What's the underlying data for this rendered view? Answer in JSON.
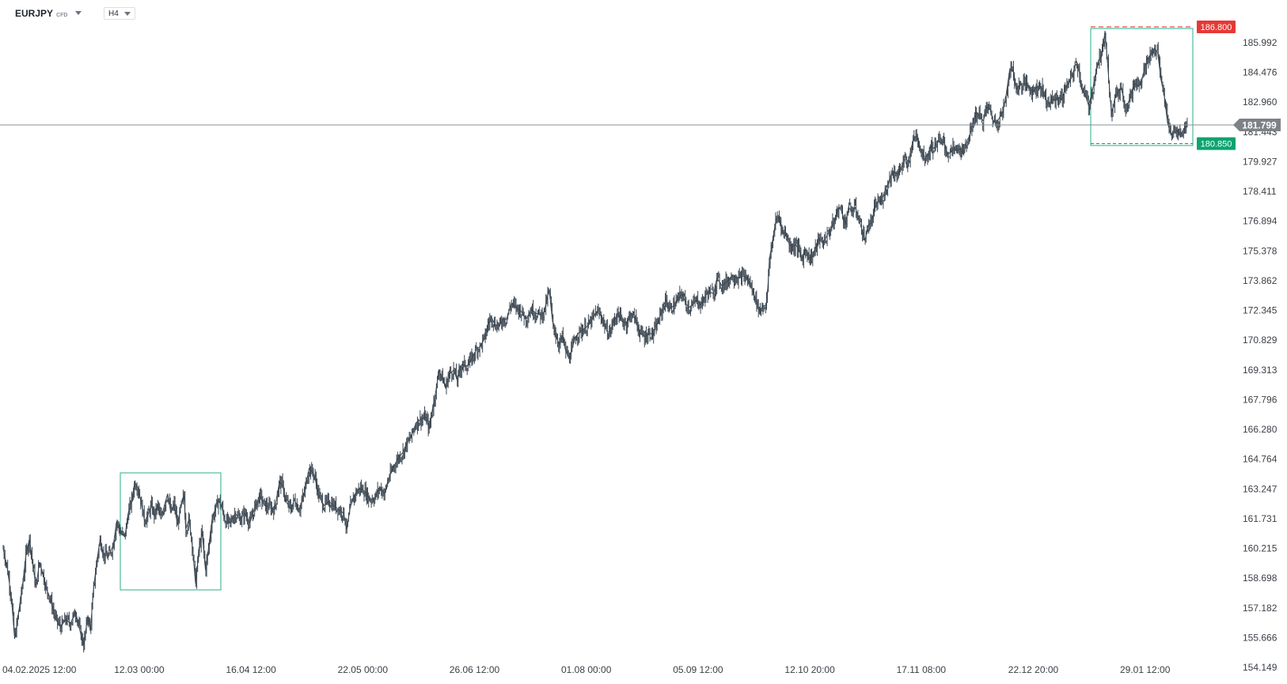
{
  "toolbar": {
    "symbol": "EURJPY",
    "instrument_type": "CFD",
    "timeframe": "H4"
  },
  "chart_data": {
    "type": "candlestick",
    "y_ticks": [
      "185.992",
      "184.476",
      "182.960",
      "181.443",
      "179.927",
      "178.411",
      "176.894",
      "175.378",
      "173.862",
      "172.345",
      "170.829",
      "169.313",
      "167.796",
      "166.280",
      "164.764",
      "163.247",
      "161.731",
      "160.215",
      "158.698",
      "157.182",
      "155.666",
      "154.149"
    ],
    "x_ticks": [
      "04.02.2025  12:00",
      "12.03  00:00",
      "16.04  12:00",
      "22.05  00:00",
      "26.06  12:00",
      "01.08  00:00",
      "05.09  12:00",
      "12.10  20:00",
      "17.11  08:00",
      "22.12  20:00",
      "29.01  12:00"
    ],
    "ylim": [
      154.149,
      186.8
    ],
    "current_price": "181.799",
    "levels": [
      {
        "label": "186.800",
        "value": 186.8,
        "color": "#e53935"
      },
      {
        "label": "180.850",
        "value": 180.85,
        "color": "#0aa46f"
      }
    ],
    "price_path": [
      [
        0,
        160.2
      ],
      [
        5,
        159.2
      ],
      [
        10,
        157.7
      ],
      [
        14,
        155.6
      ],
      [
        19,
        157.0
      ],
      [
        24,
        158.5
      ],
      [
        28,
        160.0
      ],
      [
        32,
        160.7
      ],
      [
        36,
        159.4
      ],
      [
        40,
        158.2
      ],
      [
        44,
        159.5
      ],
      [
        48,
        159.0
      ],
      [
        52,
        158.2
      ],
      [
        56,
        157.8
      ],
      [
        60,
        157.2
      ],
      [
        64,
        156.6
      ],
      [
        70,
        156.2
      ],
      [
        76,
        156.6
      ],
      [
        82,
        156.4
      ],
      [
        88,
        157.0
      ],
      [
        94,
        155.9
      ],
      [
        98,
        155.3
      ],
      [
        103,
        156.8
      ],
      [
        106,
        156.0
      ],
      [
        110,
        158.2
      ],
      [
        114,
        159.6
      ],
      [
        118,
        160.7
      ],
      [
        122,
        159.9
      ],
      [
        128,
        159.8
      ],
      [
        134,
        160.4
      ],
      [
        138,
        161.6
      ],
      [
        143,
        161.0
      ],
      [
        148,
        160.8
      ],
      [
        152,
        162.0
      ],
      [
        156,
        162.6
      ],
      [
        160,
        163.6
      ],
      [
        164,
        163.3
      ],
      [
        168,
        162.5
      ],
      [
        172,
        161.6
      ],
      [
        176,
        161.9
      ],
      [
        180,
        162.4
      ],
      [
        184,
        161.9
      ],
      [
        188,
        162.4
      ],
      [
        192,
        161.7
      ],
      [
        196,
        162.4
      ],
      [
        200,
        163.0
      ],
      [
        204,
        162.0
      ],
      [
        208,
        162.5
      ],
      [
        212,
        161.4
      ],
      [
        216,
        162.3
      ],
      [
        220,
        162.9
      ],
      [
        222,
        161.2
      ],
      [
        226,
        161.7
      ],
      [
        230,
        160.4
      ],
      [
        234,
        158.4
      ],
      [
        238,
        160.2
      ],
      [
        242,
        161.0
      ],
      [
        246,
        159.1
      ],
      [
        250,
        160.3
      ],
      [
        254,
        161.7
      ],
      [
        258,
        162.2
      ],
      [
        262,
        162.7
      ],
      [
        266,
        162.3
      ],
      [
        270,
        161.6
      ],
      [
        276,
        161.5
      ],
      [
        282,
        162.0
      ],
      [
        288,
        161.7
      ],
      [
        294,
        162.0
      ],
      [
        300,
        161.5
      ],
      [
        306,
        162.3
      ],
      [
        312,
        162.9
      ],
      [
        318,
        162.4
      ],
      [
        324,
        162.3
      ],
      [
        330,
        162.2
      ],
      [
        336,
        163.6
      ],
      [
        340,
        163.4
      ],
      [
        344,
        162.6
      ],
      [
        350,
        162.2
      ],
      [
        354,
        162.7
      ],
      [
        360,
        162.2
      ],
      [
        366,
        163.0
      ],
      [
        372,
        164.3
      ],
      [
        378,
        164.0
      ],
      [
        384,
        162.9
      ],
      [
        390,
        162.4
      ],
      [
        396,
        162.6
      ],
      [
        402,
        162.4
      ],
      [
        408,
        162.2
      ],
      [
        414,
        162.0
      ],
      [
        418,
        161.2
      ],
      [
        422,
        162.3
      ],
      [
        428,
        163.0
      ],
      [
        434,
        163.3
      ],
      [
        440,
        163.1
      ],
      [
        446,
        162.7
      ],
      [
        452,
        162.8
      ],
      [
        458,
        163.3
      ],
      [
        464,
        163.0
      ],
      [
        468,
        163.7
      ],
      [
        474,
        164.3
      ],
      [
        480,
        164.8
      ],
      [
        486,
        165.1
      ],
      [
        490,
        165.5
      ],
      [
        496,
        165.9
      ],
      [
        502,
        166.6
      ],
      [
        508,
        166.8
      ],
      [
        514,
        166.9
      ],
      [
        518,
        166.3
      ],
      [
        522,
        167.3
      ],
      [
        526,
        168.2
      ],
      [
        530,
        169.3
      ],
      [
        534,
        168.9
      ],
      [
        538,
        168.4
      ],
      [
        542,
        169.1
      ],
      [
        548,
        169.3
      ],
      [
        552,
        168.8
      ],
      [
        558,
        169.6
      ],
      [
        564,
        169.5
      ],
      [
        570,
        169.9
      ],
      [
        576,
        170.4
      ],
      [
        580,
        170.5
      ],
      [
        586,
        171.0
      ],
      [
        590,
        171.7
      ],
      [
        594,
        172.0
      ],
      [
        598,
        171.6
      ],
      [
        604,
        171.6
      ],
      [
        608,
        171.9
      ],
      [
        612,
        171.9
      ],
      [
        618,
        172.7
      ],
      [
        624,
        172.5
      ],
      [
        630,
        172.3
      ],
      [
        636,
        171.9
      ],
      [
        642,
        172.4
      ],
      [
        648,
        172.2
      ],
      [
        654,
        172.1
      ],
      [
        658,
        172.3
      ],
      [
        664,
        173.4
      ],
      [
        668,
        171.8
      ],
      [
        672,
        171.1
      ],
      [
        676,
        170.6
      ],
      [
        680,
        171.0
      ],
      [
        684,
        170.3
      ],
      [
        688,
        169.9
      ],
      [
        692,
        170.4
      ],
      [
        696,
        171.0
      ],
      [
        700,
        171.2
      ],
      [
        706,
        171.4
      ],
      [
        712,
        171.6
      ],
      [
        718,
        172.0
      ],
      [
        722,
        172.3
      ],
      [
        728,
        172.0
      ],
      [
        734,
        171.3
      ],
      [
        738,
        171.2
      ],
      [
        742,
        171.8
      ],
      [
        748,
        172.2
      ],
      [
        752,
        171.8
      ],
      [
        758,
        171.7
      ],
      [
        764,
        172.2
      ],
      [
        770,
        171.8
      ],
      [
        774,
        171.2
      ],
      [
        780,
        171.0
      ],
      [
        786,
        171.2
      ],
      [
        790,
        171.1
      ],
      [
        796,
        171.7
      ],
      [
        800,
        172.2
      ],
      [
        806,
        172.9
      ],
      [
        810,
        172.4
      ],
      [
        816,
        172.6
      ],
      [
        820,
        172.9
      ],
      [
        826,
        173.2
      ],
      [
        830,
        172.7
      ],
      [
        834,
        172.5
      ],
      [
        838,
        172.6
      ],
      [
        844,
        172.9
      ],
      [
        848,
        172.6
      ],
      [
        854,
        173.1
      ],
      [
        858,
        173.3
      ],
      [
        864,
        173.2
      ],
      [
        868,
        174.0
      ],
      [
        874,
        173.6
      ],
      [
        880,
        173.8
      ],
      [
        886,
        174.1
      ],
      [
        892,
        174.0
      ],
      [
        896,
        174.0
      ],
      [
        900,
        174.1
      ],
      [
        904,
        174.0
      ],
      [
        908,
        173.7
      ],
      [
        912,
        173.3
      ],
      [
        916,
        172.8
      ],
      [
        920,
        172.3
      ],
      [
        924,
        172.6
      ],
      [
        928,
        172.6
      ],
      [
        930,
        173.6
      ],
      [
        932,
        175.0
      ],
      [
        936,
        176.0
      ],
      [
        940,
        177.0
      ],
      [
        944,
        177.1
      ],
      [
        948,
        176.3
      ],
      [
        952,
        176.3
      ],
      [
        956,
        175.7
      ],
      [
        960,
        175.6
      ],
      [
        964,
        175.7
      ],
      [
        968,
        175.4
      ],
      [
        972,
        174.9
      ],
      [
        976,
        175.5
      ],
      [
        980,
        175.0
      ],
      [
        984,
        175.1
      ],
      [
        988,
        175.5
      ],
      [
        992,
        176.0
      ],
      [
        996,
        175.8
      ],
      [
        1000,
        176.0
      ],
      [
        1006,
        176.5
      ],
      [
        1010,
        176.8
      ],
      [
        1016,
        177.6
      ],
      [
        1020,
        177.4
      ],
      [
        1024,
        176.7
      ],
      [
        1028,
        177.6
      ],
      [
        1032,
        177.4
      ],
      [
        1036,
        177.6
      ],
      [
        1040,
        177.1
      ],
      [
        1044,
        176.5
      ],
      [
        1048,
        175.9
      ],
      [
        1052,
        176.7
      ],
      [
        1056,
        176.8
      ],
      [
        1060,
        177.6
      ],
      [
        1064,
        177.9
      ],
      [
        1068,
        177.9
      ],
      [
        1072,
        178.4
      ],
      [
        1076,
        178.8
      ],
      [
        1080,
        179.3
      ],
      [
        1084,
        179.4
      ],
      [
        1088,
        179.3
      ],
      [
        1092,
        179.6
      ],
      [
        1096,
        180.1
      ],
      [
        1100,
        179.6
      ],
      [
        1104,
        180.6
      ],
      [
        1108,
        181.2
      ],
      [
        1112,
        181.2
      ],
      [
        1116,
        180.5
      ],
      [
        1120,
        180.2
      ],
      [
        1124,
        180.2
      ],
      [
        1128,
        180.7
      ],
      [
        1132,
        180.6
      ],
      [
        1136,
        181.0
      ],
      [
        1140,
        180.9
      ],
      [
        1144,
        180.9
      ],
      [
        1148,
        180.3
      ],
      [
        1152,
        180.4
      ],
      [
        1156,
        180.6
      ],
      [
        1160,
        180.5
      ],
      [
        1164,
        180.6
      ],
      [
        1168,
        180.3
      ],
      [
        1172,
        181.0
      ],
      [
        1176,
        181.3
      ],
      [
        1180,
        182.1
      ],
      [
        1184,
        182.4
      ],
      [
        1188,
        182.2
      ],
      [
        1192,
        182.0
      ],
      [
        1196,
        182.7
      ],
      [
        1200,
        182.6
      ],
      [
        1204,
        182.0
      ],
      [
        1208,
        181.9
      ],
      [
        1212,
        182.2
      ],
      [
        1216,
        182.5
      ],
      [
        1220,
        183.4
      ],
      [
        1224,
        184.6
      ],
      [
        1228,
        184.6
      ],
      [
        1232,
        183.6
      ],
      [
        1236,
        183.8
      ],
      [
        1240,
        183.9
      ],
      [
        1244,
        183.9
      ],
      [
        1248,
        183.7
      ],
      [
        1252,
        183.5
      ],
      [
        1256,
        183.7
      ],
      [
        1260,
        183.8
      ],
      [
        1264,
        183.6
      ],
      [
        1268,
        183.1
      ],
      [
        1272,
        182.9
      ],
      [
        1276,
        183.1
      ],
      [
        1280,
        183.1
      ],
      [
        1284,
        183.2
      ],
      [
        1288,
        183.1
      ],
      [
        1292,
        183.8
      ],
      [
        1296,
        183.9
      ],
      [
        1300,
        184.3
      ],
      [
        1304,
        184.9
      ],
      [
        1308,
        184.7
      ],
      [
        1312,
        183.6
      ],
      [
        1316,
        183.3
      ],
      [
        1320,
        182.8
      ],
      [
        1324,
        183.4
      ],
      [
        1328,
        184.3
      ],
      [
        1332,
        185.1
      ],
      [
        1336,
        185.3
      ],
      [
        1340,
        186.6
      ],
      [
        1344,
        184.4
      ],
      [
        1348,
        182.3
      ],
      [
        1352,
        183.2
      ],
      [
        1356,
        183.5
      ],
      [
        1360,
        183.7
      ],
      [
        1364,
        182.8
      ],
      [
        1368,
        182.9
      ],
      [
        1372,
        183.4
      ],
      [
        1376,
        183.9
      ],
      [
        1380,
        183.8
      ],
      [
        1384,
        183.9
      ],
      [
        1388,
        184.7
      ],
      [
        1392,
        185.2
      ],
      [
        1396,
        185.4
      ],
      [
        1400,
        185.7
      ],
      [
        1404,
        185.5
      ],
      [
        1408,
        184.1
      ],
      [
        1412,
        183.3
      ],
      [
        1416,
        181.9
      ],
      [
        1420,
        181.3
      ],
      [
        1424,
        181.4
      ],
      [
        1428,
        181.5
      ],
      [
        1432,
        181.3
      ],
      [
        1436,
        181.6
      ],
      [
        1440,
        181.8
      ]
    ]
  }
}
